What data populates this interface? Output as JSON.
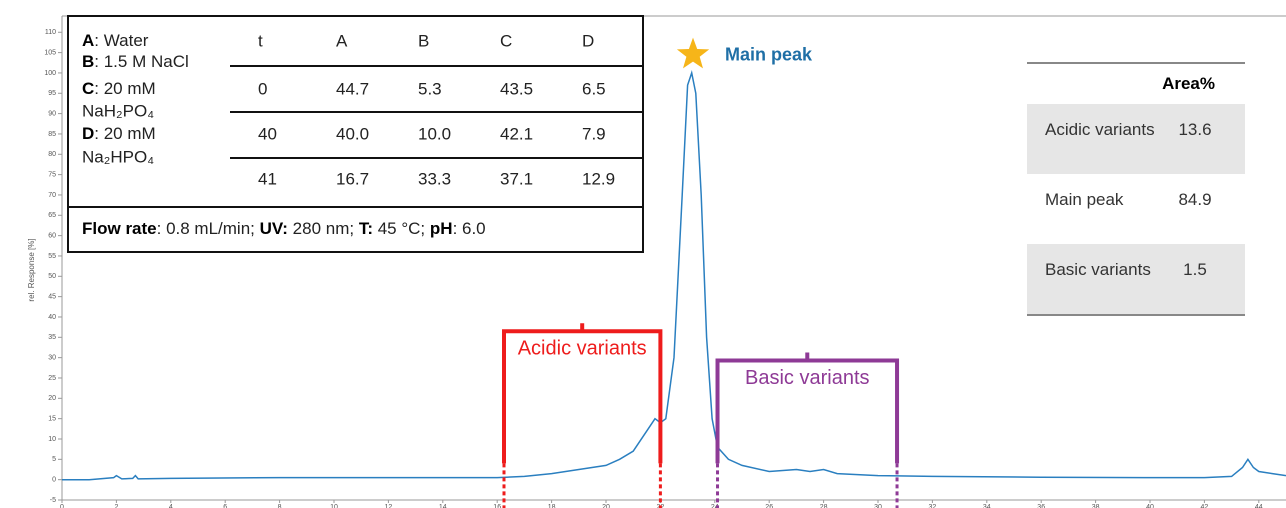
{
  "chart_data": {
    "type": "line",
    "ylabel": "rel. Response [%]",
    "color": "#2a7fc0",
    "x": [
      0,
      1,
      1.9,
      2.0,
      2.2,
      2.6,
      2.7,
      2.8,
      4,
      8,
      12,
      16,
      17,
      18,
      19,
      20,
      20.5,
      21,
      21.5,
      21.8,
      22,
      22.2,
      22.5,
      22.8,
      23.0,
      23.15,
      23.3,
      23.5,
      23.7,
      23.9,
      24.1,
      24.5,
      25,
      26,
      27,
      27.5,
      28,
      28.5,
      30,
      32,
      36,
      40,
      42,
      43,
      43.4,
      43.6,
      43.8,
      44,
      44.5,
      45
    ],
    "values": [
      0,
      0,
      0.5,
      1,
      0.2,
      0.3,
      1,
      0.2,
      0.3,
      0.5,
      0.5,
      0.5,
      0.8,
      1.5,
      2.5,
      3.5,
      5,
      7,
      12,
      15,
      14,
      15,
      30,
      70,
      97,
      100,
      95,
      70,
      35,
      15,
      8,
      5,
      3.5,
      2,
      2.5,
      2,
      2.5,
      1.5,
      1,
      0.8,
      0.6,
      0.5,
      0.5,
      0.8,
      3,
      5,
      3,
      2,
      1.5,
      1
    ],
    "xlim": [
      0,
      45
    ],
    "ylim": [
      -5,
      114
    ],
    "xticks": [
      0,
      2,
      4,
      6,
      8,
      10,
      12,
      14,
      16,
      18,
      20,
      22,
      24,
      26,
      28,
      30,
      32,
      34,
      36,
      38,
      40,
      42,
      44
    ],
    "yticks": [
      -5,
      0,
      5,
      10,
      15,
      20,
      25,
      30,
      35,
      40,
      45,
      50,
      55,
      60,
      65,
      70,
      75,
      80,
      85,
      90,
      95,
      100,
      105,
      110
    ],
    "regions": [
      {
        "label": "Acidic variants",
        "x": [
          16.25,
          22
        ],
        "y": 36.5,
        "color": "#ee1c1c"
      },
      {
        "label": "Basic variants",
        "x": [
          24.1,
          30.7
        ],
        "y": 29.3,
        "color": "#8e3a96"
      }
    ],
    "main_peak": {
      "label": "Main peak",
      "x": 23.2,
      "y": 104.5
    },
    "gradient_table": {
      "legend": [
        {
          "key": "A",
          "text": ": Water"
        },
        {
          "key": "B",
          "text": ": 1.5 M NaCl"
        },
        {
          "key": "C",
          "text": ": 20 mM",
          "text2": "NaH₂PO₄"
        },
        {
          "key": "D",
          "text": ": 20 mM",
          "text2": "Na₂HPO₄"
        }
      ],
      "columns": [
        "t",
        "A",
        "B",
        "C",
        "D"
      ],
      "rows": [
        [
          "0",
          "44.7",
          "5.3",
          "43.5",
          "6.5"
        ],
        [
          "40",
          "40.0",
          "10.0",
          "42.1",
          "7.9"
        ],
        [
          "41",
          "16.7",
          "33.3",
          "37.1",
          "12.9"
        ]
      ],
      "conditions": [
        {
          "bold": "Flow rate",
          "text": ": 0.8 mL/min; "
        },
        {
          "bold": "UV:",
          "text": " 280 nm; "
        },
        {
          "bold": "T:",
          "text": " 45 °C; "
        },
        {
          "bold": "pH",
          "text": ": 6.0"
        }
      ]
    },
    "area_table": {
      "header": "Area%",
      "rows": [
        [
          "Acidic variants",
          "13.6"
        ],
        [
          "Main peak",
          "84.9"
        ],
        [
          "Basic variants",
          "1.5"
        ]
      ]
    }
  }
}
